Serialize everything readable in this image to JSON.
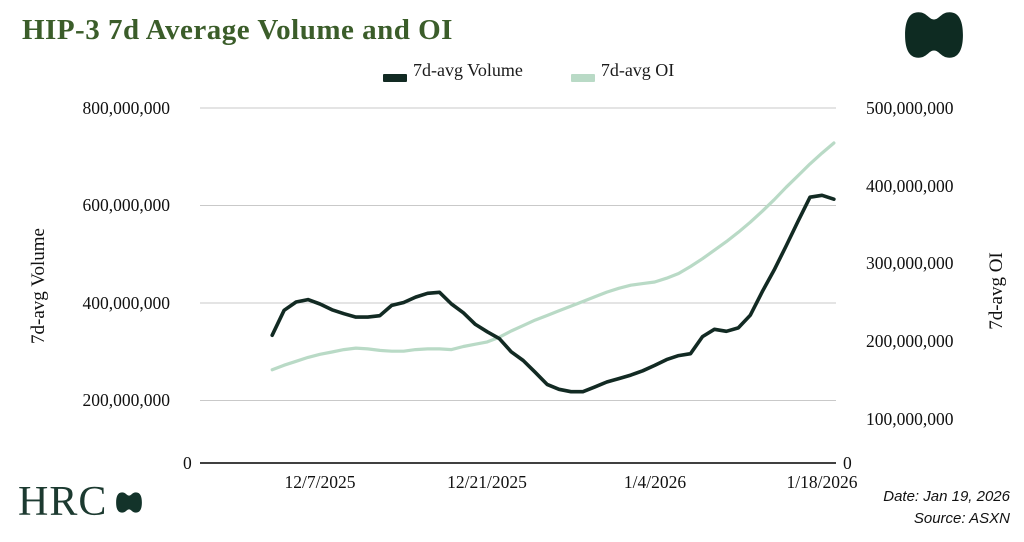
{
  "title": "HIP-3 7d Average Volume and OI",
  "legend": [
    {
      "label": "7d-avg Volume",
      "color": "#122a23"
    },
    {
      "label": "7d-avg OI",
      "color": "#b9dac6"
    }
  ],
  "branding": {
    "logo_text": "HRC"
  },
  "footer": {
    "date": "Date: Jan 19, 2026",
    "source": "Source: ASXN"
  },
  "colors": {
    "title_green": "#3b5d2a",
    "volume_line": "#122a23",
    "oi_line": "#b9dac6",
    "gridline": "#c9c9c9",
    "axis": "#000000",
    "logo_dark": "#0e2b22"
  },
  "chart_data": {
    "type": "line",
    "title": "HIP-3 7d Average Volume and OI",
    "grid": "horizontal-only",
    "legend_position": "top-center",
    "x": [
      "12/3/2025",
      "12/4/2025",
      "12/5/2025",
      "12/6/2025",
      "12/7/2025",
      "12/8/2025",
      "12/9/2025",
      "12/10/2025",
      "12/11/2025",
      "12/12/2025",
      "12/13/2025",
      "12/14/2025",
      "12/15/2025",
      "12/16/2025",
      "12/17/2025",
      "12/18/2025",
      "12/19/2025",
      "12/20/2025",
      "12/21/2025",
      "12/22/2025",
      "12/23/2025",
      "12/24/2025",
      "12/25/2025",
      "12/26/2025",
      "12/27/2025",
      "12/28/2025",
      "12/29/2025",
      "12/30/2025",
      "12/31/2025",
      "1/1/2026",
      "1/2/2026",
      "1/3/2026",
      "1/4/2026",
      "1/5/2026",
      "1/6/2026",
      "1/7/2026",
      "1/8/2026",
      "1/9/2026",
      "1/10/2026",
      "1/11/2026",
      "1/12/2026",
      "1/13/2026",
      "1/14/2026",
      "1/15/2026",
      "1/16/2026",
      "1/17/2026",
      "1/18/2026",
      "1/19/2026"
    ],
    "x_ticks": [
      "12/7/2025",
      "12/21/2025",
      "1/4/2026",
      "1/18/2026"
    ],
    "series": [
      {
        "name": "7d-avg Volume",
        "axis": "left",
        "color": "#122a23",
        "values": [
          334000000,
          385000000,
          402000000,
          407000000,
          398000000,
          386000000,
          378000000,
          371000000,
          371000000,
          374000000,
          395000000,
          401000000,
          412000000,
          420000000,
          422000000,
          398000000,
          380000000,
          356000000,
          341000000,
          327000000,
          300000000,
          282000000,
          258000000,
          233000000,
          223000000,
          218000000,
          218000000,
          228000000,
          238000000,
          245000000,
          252000000,
          261000000,
          272000000,
          284000000,
          292000000,
          296000000,
          331000000,
          346000000,
          342000000,
          349000000,
          375000000,
          423000000,
          468000000,
          517000000,
          568000000,
          617000000,
          621000000,
          613000000
        ]
      },
      {
        "name": "7d-avg OI",
        "axis": "right",
        "color": "#b9dac6",
        "values": [
          163000000,
          169000000,
          174000000,
          179000000,
          183000000,
          186000000,
          189000000,
          191000000,
          190000000,
          188000000,
          187000000,
          187000000,
          189000000,
          190000000,
          190000000,
          189000000,
          193000000,
          196000000,
          199000000,
          205000000,
          213000000,
          220000000,
          227000000,
          233000000,
          239000000,
          245000000,
          251000000,
          257000000,
          263000000,
          268000000,
          272000000,
          274000000,
          276000000,
          281000000,
          287000000,
          296000000,
          306000000,
          317000000,
          328000000,
          340000000,
          353000000,
          367000000,
          382000000,
          398000000,
          413000000,
          428000000,
          442000000,
          455000000
        ]
      }
    ],
    "left_axis": {
      "label": "7d-avg Volume",
      "range": [
        0,
        800000000
      ],
      "ticks": [
        "800,000,000",
        "600,000,000",
        "400,000,000",
        "200,000,000"
      ],
      "zero_label": "0"
    },
    "right_axis": {
      "label": "7d-avg OI",
      "range": [
        0,
        500000000
      ],
      "ticks": [
        "500,000,000",
        "400,000,000",
        "300,000,000",
        "200,000,000",
        "100,000,000"
      ],
      "zero_label": "0"
    }
  }
}
